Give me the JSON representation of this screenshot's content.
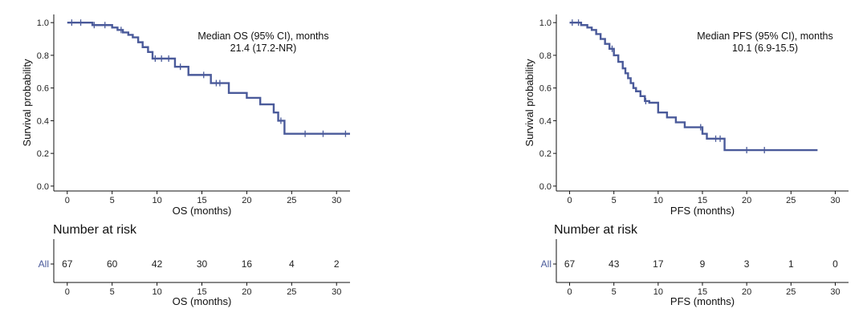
{
  "chart_data": [
    {
      "type": "line",
      "subtype": "kaplan-meier",
      "ylabel": "Survival probability",
      "xlabel": "OS (months)",
      "xlim": [
        -1.5,
        31.5
      ],
      "ylim": [
        -0.03,
        1.05
      ],
      "xticks": [
        0,
        5,
        10,
        15,
        20,
        25,
        30
      ],
      "yticks": [
        0.0,
        0.2,
        0.4,
        0.6,
        0.8,
        1.0
      ],
      "xtick_labels": [
        "0",
        "5",
        "10",
        "15",
        "20",
        "25",
        "30"
      ],
      "ytick_labels": [
        "0.0",
        "0.2",
        "0.4",
        "0.6",
        "0.8",
        "1.0"
      ],
      "color": "#4A5A9A",
      "annotation": {
        "line1": "Median OS (95% CI), months",
        "line2": "21.4 (17.2-NR)"
      },
      "series": [
        {
          "x": [
            0,
            2.8,
            5,
            5.6,
            6.2,
            6.8,
            7.3,
            7.9,
            8.4,
            9.0,
            9.5,
            12.0,
            13.5,
            16.0,
            18.0,
            20.0,
            21.5,
            23.0,
            23.5,
            24.2,
            31.5
          ],
          "y": [
            1.0,
            0.985,
            0.97,
            0.955,
            0.94,
            0.925,
            0.91,
            0.88,
            0.85,
            0.82,
            0.78,
            0.73,
            0.68,
            0.63,
            0.57,
            0.54,
            0.5,
            0.45,
            0.4,
            0.32,
            0.32
          ]
        }
      ],
      "censor_marks": {
        "x": [
          0.5,
          1.5,
          3.0,
          4.2,
          6.0,
          9.8,
          10.5,
          11.3,
          12.6,
          15.2,
          16.6,
          17.0,
          23.8,
          26.5,
          28.5,
          31.0
        ],
        "y": [
          1.0,
          1.0,
          0.985,
          0.985,
          0.955,
          0.78,
          0.78,
          0.78,
          0.73,
          0.68,
          0.63,
          0.63,
          0.4,
          0.32,
          0.32,
          0.32
        ]
      },
      "risk_table": {
        "title": "Number at risk",
        "strata": "All",
        "times": [
          0,
          5,
          10,
          15,
          20,
          25,
          30
        ],
        "counts": [
          "67",
          "60",
          "42",
          "30",
          "16",
          "4",
          "2"
        ],
        "xlabel": "OS (months)",
        "xtick_labels": [
          "0",
          "5",
          "10",
          "15",
          "20",
          "25",
          "30"
        ]
      }
    },
    {
      "type": "line",
      "subtype": "kaplan-meier",
      "ylabel": "Survival probability",
      "xlabel": "PFS (months)",
      "xlim": [
        -1.5,
        31.5
      ],
      "ylim": [
        -0.03,
        1.05
      ],
      "xticks": [
        0,
        5,
        10,
        15,
        20,
        25,
        30
      ],
      "yticks": [
        0.0,
        0.2,
        0.4,
        0.6,
        0.8,
        1.0
      ],
      "xtick_labels": [
        "0",
        "5",
        "10",
        "15",
        "20",
        "25",
        "30"
      ],
      "ytick_labels": [
        "0.0",
        "0.2",
        "0.4",
        "0.6",
        "0.8",
        "1.0"
      ],
      "color": "#4A5A9A",
      "annotation": {
        "line1": "Median PFS (95% CI), months",
        "line2": "10.1 (6.9-15.5)"
      },
      "series": [
        {
          "x": [
            0,
            1.3,
            2.0,
            2.5,
            3.0,
            3.5,
            4.0,
            4.5,
            5.0,
            5.5,
            6.0,
            6.3,
            6.6,
            6.9,
            7.2,
            7.5,
            8.0,
            8.5,
            9.0,
            10.0,
            11.0,
            12.0,
            13.0,
            15.0,
            15.5,
            17.5,
            28.0
          ],
          "y": [
            1.0,
            0.985,
            0.97,
            0.955,
            0.93,
            0.9,
            0.87,
            0.84,
            0.8,
            0.76,
            0.72,
            0.69,
            0.66,
            0.63,
            0.6,
            0.58,
            0.55,
            0.52,
            0.51,
            0.45,
            0.42,
            0.39,
            0.36,
            0.32,
            0.29,
            0.22,
            0.22
          ]
        }
      ],
      "censor_marks": {
        "x": [
          0.3,
          1.0,
          4.8,
          8.6,
          14.8,
          16.5,
          17.0,
          20.0,
          22.0
        ],
        "y": [
          1.0,
          1.0,
          0.84,
          0.52,
          0.36,
          0.29,
          0.29,
          0.22,
          0.22
        ]
      },
      "risk_table": {
        "title": "Number at risk",
        "strata": "All",
        "times": [
          0,
          5,
          10,
          15,
          20,
          25,
          30
        ],
        "counts": [
          "67",
          "43",
          "17",
          "9",
          "3",
          "1",
          "0"
        ],
        "xlabel": "PFS (months)",
        "xtick_labels": [
          "0",
          "5",
          "10",
          "15",
          "20",
          "25",
          "30"
        ]
      }
    }
  ]
}
